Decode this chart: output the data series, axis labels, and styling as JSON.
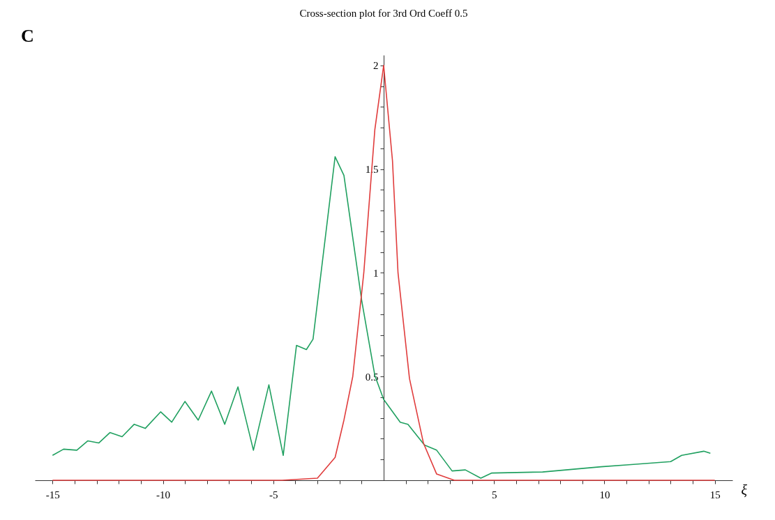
{
  "chart_data": {
    "type": "line",
    "title": "Cross-section plot for 3rd Ord Coeff  0.5",
    "xlabel": "ξ",
    "annotations": [
      "C"
    ],
    "xlim": [
      -15.8,
      15.8
    ],
    "ylim": [
      0,
      2.05
    ],
    "xticks": [
      -15,
      {
        "value": -14,
        "label": null
      },
      {
        "value": -13,
        "label": null
      },
      {
        "value": -12,
        "label": null
      },
      {
        "value": -11,
        "label": null
      },
      -10,
      {
        "value": -9,
        "label": null
      },
      {
        "value": -8,
        "label": null
      },
      {
        "value": -7,
        "label": null
      },
      {
        "value": -6,
        "label": null
      },
      -5,
      {
        "value": -4,
        "label": null
      },
      {
        "value": -3,
        "label": null
      },
      {
        "value": -2,
        "label": null
      },
      {
        "value": -1,
        "label": null
      },
      {
        "value": 1,
        "label": null
      },
      {
        "value": 2,
        "label": null
      },
      {
        "value": 3,
        "label": null
      },
      {
        "value": 4,
        "label": null
      },
      5,
      {
        "value": 6,
        "label": null
      },
      {
        "value": 7,
        "label": null
      },
      {
        "value": 8,
        "label": null
      },
      {
        "value": 9,
        "label": null
      },
      10,
      {
        "value": 11,
        "label": null
      },
      {
        "value": 12,
        "label": null
      },
      {
        "value": 13,
        "label": null
      },
      {
        "value": 14,
        "label": null
      },
      15
    ],
    "yticks": [
      {
        "value": 0.1,
        "label": null
      },
      {
        "value": 0.2,
        "label": null
      },
      {
        "value": 0.3,
        "label": null
      },
      {
        "value": 0.4,
        "label": null
      },
      0.5,
      {
        "value": 0.6,
        "label": null
      },
      {
        "value": 0.7,
        "label": null
      },
      {
        "value": 0.8,
        "label": null
      },
      {
        "value": 0.9,
        "label": null
      },
      1,
      {
        "value": 1.1,
        "label": null
      },
      {
        "value": 1.2,
        "label": null
      },
      {
        "value": 1.3,
        "label": null
      },
      {
        "value": 1.4,
        "label": null
      },
      1.5,
      {
        "value": 1.6,
        "label": null
      },
      {
        "value": 1.7,
        "label": null
      },
      {
        "value": 1.8,
        "label": null
      },
      {
        "value": 1.9,
        "label": null
      },
      2
    ],
    "grid": false,
    "legend": false,
    "marker": "none",
    "line_style": "solid",
    "series": [
      {
        "color": "#20a060",
        "x": [
          -15,
          -14.5,
          -13.9,
          -13.4,
          -12.9,
          -12.4,
          -11.85,
          -11.3,
          -10.8,
          -10.1,
          -9.6,
          -9.0,
          -8.4,
          -7.8,
          -7.2,
          -6.6,
          -5.9,
          -5.2,
          -4.55,
          -3.95,
          -3.5,
          -3.2,
          -2.2,
          -1.8,
          -1.0,
          -0.4,
          0,
          0.75,
          1.1,
          1.85,
          2.4,
          3.1,
          3.7,
          4.4,
          4.9,
          7.2,
          9.85,
          11.1,
          13.0,
          13.5,
          14.5,
          14.8
        ],
        "values": [
          0.12,
          0.15,
          0.145,
          0.19,
          0.18,
          0.23,
          0.21,
          0.27,
          0.25,
          0.33,
          0.28,
          0.38,
          0.29,
          0.43,
          0.27,
          0.45,
          0.145,
          0.46,
          0.12,
          0.65,
          0.63,
          0.68,
          1.56,
          1.47,
          0.87,
          0.505,
          0.39,
          0.28,
          0.27,
          0.17,
          0.145,
          0.045,
          0.05,
          0.01,
          0.035,
          0.04,
          0.065,
          0.075,
          0.09,
          0.12,
          0.14,
          0.13
        ]
      },
      {
        "color": "#e03c3c",
        "x": [
          -15,
          -4.6,
          -3.0,
          -2.2,
          -1.8,
          -1.4,
          -0.9,
          -0.4,
          0,
          0.4,
          0.65,
          1.17,
          1.8,
          2.4,
          3.2,
          15
        ],
        "values": [
          0,
          0,
          0.01,
          0.11,
          0.29,
          0.5,
          1.0,
          1.69,
          2.0,
          1.54,
          1.0,
          0.49,
          0.18,
          0.03,
          0,
          0
        ]
      }
    ]
  }
}
